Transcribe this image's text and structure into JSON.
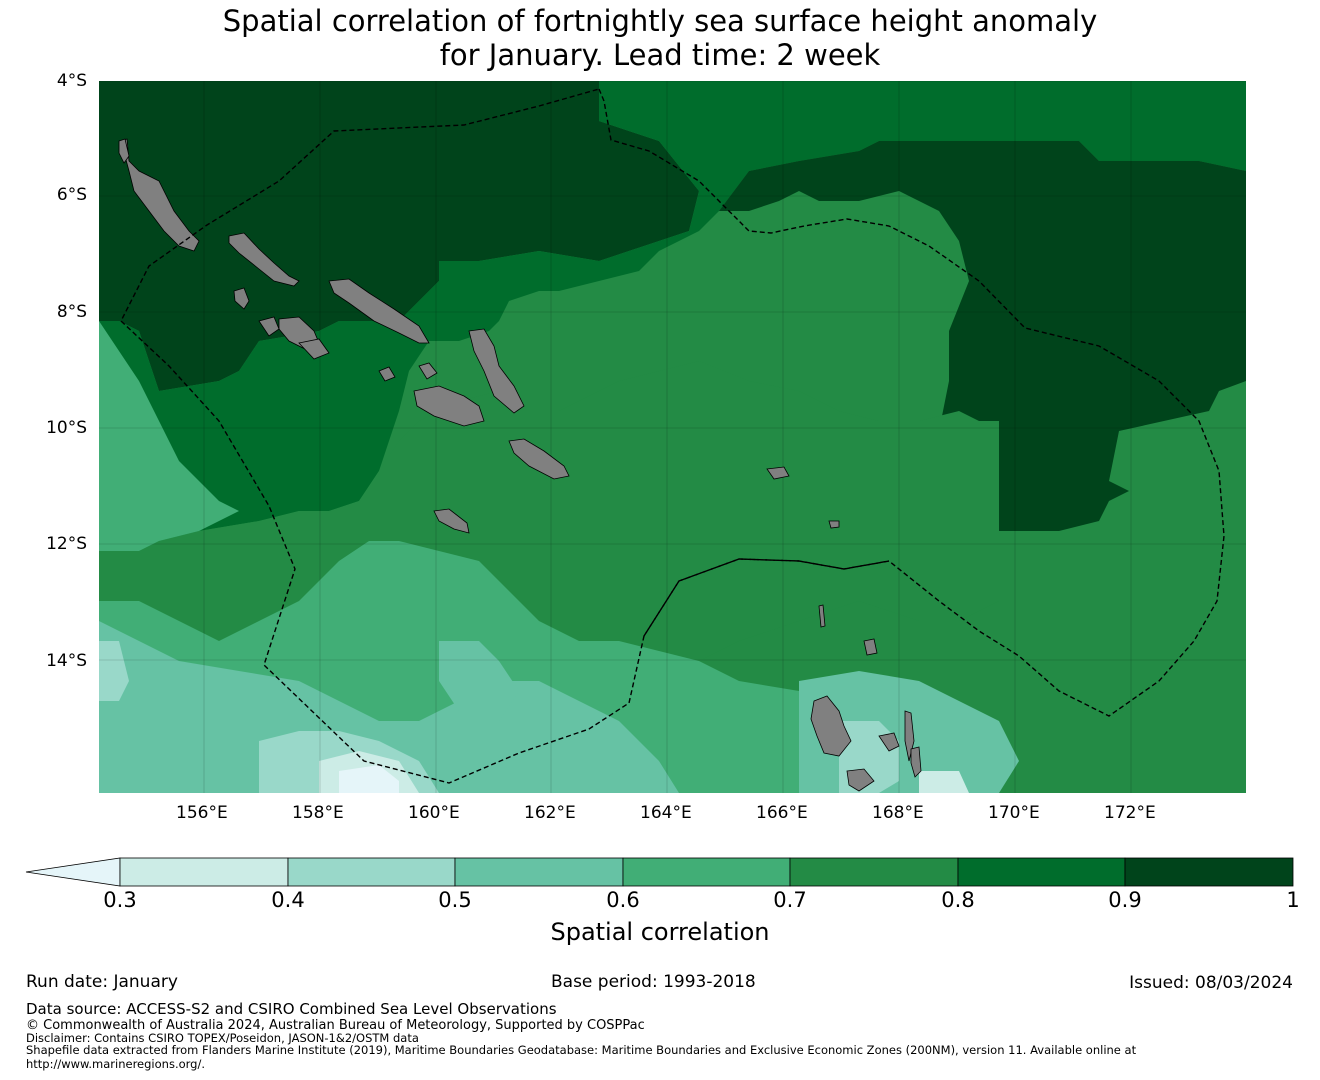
{
  "title": {
    "line1": "Spatial correlation of fortnightly sea surface height anomaly",
    "line2": "for January. Lead time: 2 week"
  },
  "map": {
    "lat_labels": [
      "4°S",
      "6°S",
      "8°S",
      "10°S",
      "12°S",
      "14°S"
    ],
    "lon_labels": [
      "156°E",
      "158°E",
      "160°E",
      "162°E",
      "164°E",
      "166°E",
      "168°E",
      "170°E",
      "172°E"
    ],
    "lat_range": [
      -16.3,
      -4.0
    ],
    "lon_range": [
      154.2,
      174.0
    ],
    "land_color": "#808080",
    "boundary_style": "dashed black"
  },
  "colorbar": {
    "label": "Spatial correlation",
    "ticks": [
      "0.3",
      "0.4",
      "0.5",
      "0.6",
      "0.7",
      "0.8",
      "0.9",
      "1"
    ],
    "under_color": "#e5f5f9",
    "colors": [
      "#ccece6",
      "#99d8c9",
      "#66c2a4",
      "#41ae76",
      "#238b45",
      "#006d2c",
      "#00441b"
    ],
    "bins": [
      [
        0.3,
        0.4
      ],
      [
        0.4,
        0.5
      ],
      [
        0.5,
        0.6
      ],
      [
        0.6,
        0.7
      ],
      [
        0.7,
        0.8
      ],
      [
        0.8,
        0.9
      ],
      [
        0.9,
        1.0
      ]
    ]
  },
  "footer": {
    "run_date": "Run date: January",
    "base_period": "Base period: 1993-2018",
    "issued": "Issued: 08/03/2024",
    "data_source": "Data source: ACCESS-S2 and CSIRO Combined Sea Level Observations",
    "copyright": "© Commonwealth of Australia 2024, Australian Bureau of Meteorology, Supported by COSPPac",
    "disclaimer": "Disclaimer: Contains CSIRO TOPEX/Poseidon, JASON-1&2/OSTM data",
    "shapefile": "Shapefile data extracted from Flanders Marine Institute (2019), Maritime Boundaries Geodatabase: Maritime Boundaries and Exclusive Economic Zones (200NM), version 11. Available online at",
    "url": "http://www.marineregions.org/."
  }
}
